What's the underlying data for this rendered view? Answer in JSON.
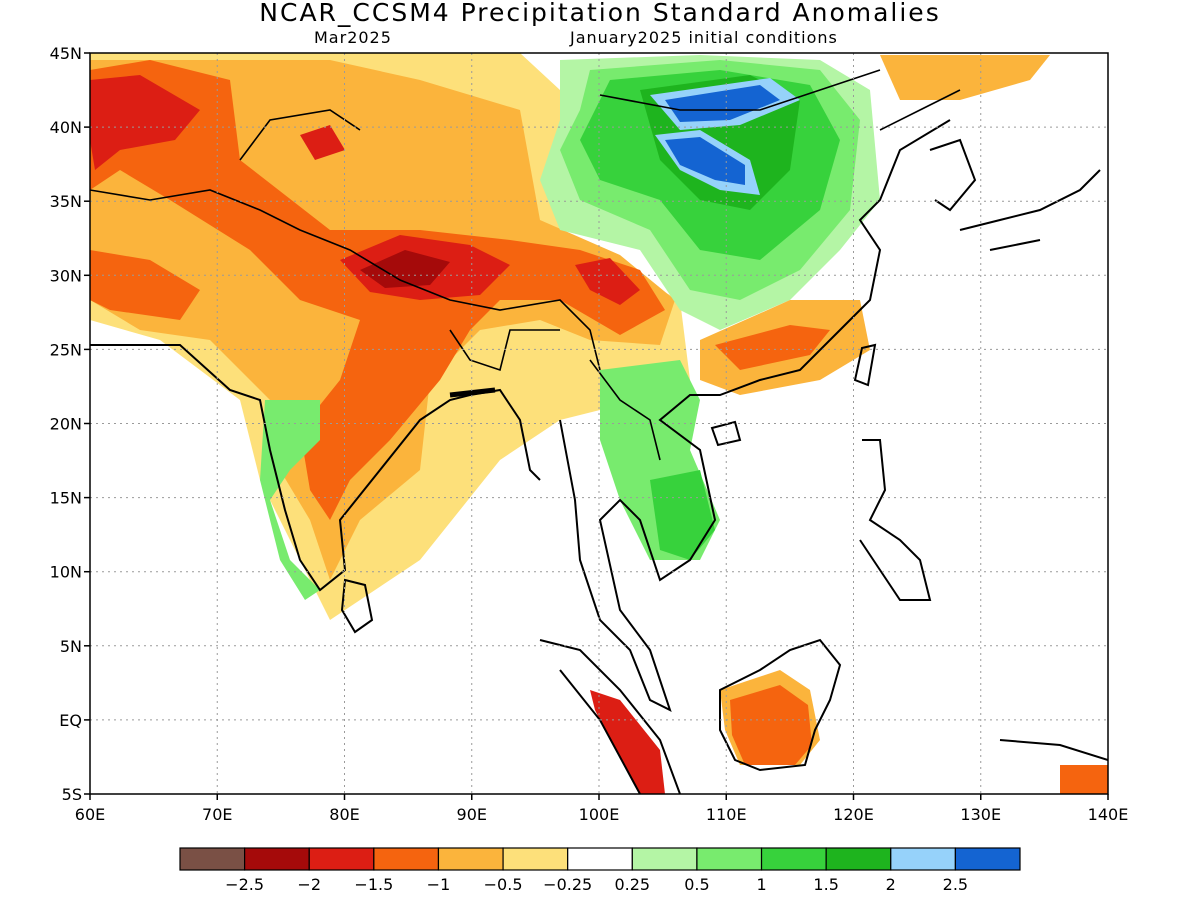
{
  "title": "NCAR_CCSM4 Precipitation Standard Anomalies",
  "subtitle_left": "Mar2025",
  "subtitle_right": "January2025 initial conditions",
  "map": {
    "lon_range": [
      60,
      140
    ],
    "lat_range": [
      -5,
      45
    ],
    "lon_ticks": [
      "60E",
      "70E",
      "80E",
      "90E",
      "100E",
      "110E",
      "120E",
      "130E",
      "140E"
    ],
    "lat_ticks": [
      "45N",
      "40N",
      "35N",
      "30N",
      "25N",
      "20N",
      "15N",
      "10N",
      "5N",
      "EQ",
      "5S"
    ],
    "gridlines": "dotted"
  },
  "colorbar": {
    "colors": [
      "#7a5045",
      "#a50a0a",
      "#dc1e14",
      "#f5640f",
      "#fbb43c",
      "#fde07a",
      "#ffffff",
      "#b4f5a5",
      "#78eb6e",
      "#37d23c",
      "#1eb41e",
      "#96d2fa",
      "#1464d2"
    ],
    "labels": [
      "−2.5",
      "−2",
      "−1.5",
      "−1",
      "−0.5",
      "−0.25",
      "0.25",
      "0.5",
      "1",
      "1.5",
      "2",
      "2.5"
    ]
  },
  "regions": [
    {
      "name": "tibet-dry-core",
      "level": "-2",
      "color": "#a50a0a"
    },
    {
      "name": "n-china-wet-core",
      "level": "2.5",
      "color": "#1464d2"
    },
    {
      "name": "borneo-dry",
      "level": "-1",
      "color": "#f5640f"
    },
    {
      "name": "indochina-wet",
      "level": "1.5",
      "color": "#37d23c"
    }
  ]
}
